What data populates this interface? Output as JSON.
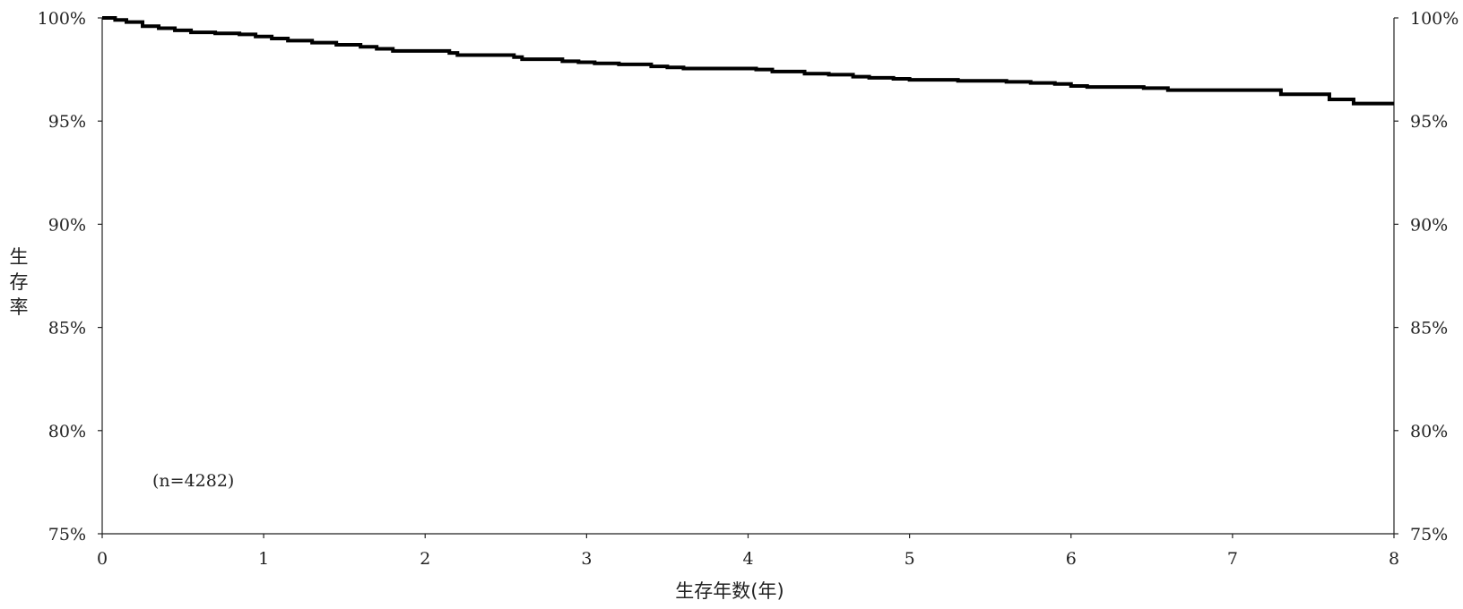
{
  "chart_data": {
    "type": "line",
    "title": "",
    "xlabel": "生存年数(年)",
    "ylabel": "生存率",
    "xlim": [
      0,
      8
    ],
    "ylim": [
      75,
      100
    ],
    "x_ticks": [
      0,
      1,
      2,
      3,
      4,
      5,
      6,
      7,
      8
    ],
    "y_ticks": [
      75,
      80,
      85,
      90,
      95,
      100
    ],
    "x_tick_labels": [
      "0",
      "1",
      "2",
      "3",
      "4",
      "5",
      "6",
      "7",
      "8"
    ],
    "y_tick_labels": [
      "75%",
      "80%",
      "85%",
      "90%",
      "95%",
      "100%"
    ],
    "y_tick_labels_right": [
      "75%",
      "80%",
      "85%",
      "90%",
      "95%",
      "100%"
    ],
    "grid": false,
    "legend": "none",
    "line_style": "step",
    "line_color": "#000000",
    "annotation": "(n=4282)",
    "series": [
      {
        "x": [
          0,
          0.08,
          0.15,
          0.25,
          0.35,
          0.45,
          0.55,
          0.7,
          0.85,
          0.95,
          1.05,
          1.15,
          1.3,
          1.45,
          1.6,
          1.7,
          1.8,
          2.0,
          2.15,
          2.2,
          2.35,
          2.55,
          2.6,
          2.75,
          2.85,
          2.95,
          3.05,
          3.2,
          3.4,
          3.5,
          3.6,
          3.75,
          3.95,
          4.05,
          4.15,
          4.35,
          4.5,
          4.65,
          4.75,
          4.9,
          5.0,
          5.15,
          5.3,
          5.45,
          5.6,
          5.75,
          5.9,
          6.0,
          6.1,
          6.3,
          6.45,
          6.6,
          6.75,
          6.9,
          7.05,
          7.2,
          7.3,
          7.45,
          7.6,
          7.75,
          8.0
        ],
        "y": [
          100,
          99.9,
          99.8,
          99.6,
          99.5,
          99.4,
          99.3,
          99.25,
          99.2,
          99.1,
          99.0,
          98.9,
          98.8,
          98.7,
          98.6,
          98.5,
          98.4,
          98.4,
          98.3,
          98.2,
          98.2,
          98.1,
          98.0,
          98.0,
          97.9,
          97.85,
          97.8,
          97.75,
          97.65,
          97.6,
          97.55,
          97.55,
          97.55,
          97.5,
          97.4,
          97.3,
          97.25,
          97.15,
          97.1,
          97.05,
          97.0,
          97.0,
          96.95,
          96.95,
          96.9,
          96.85,
          96.8,
          96.7,
          96.65,
          96.65,
          96.6,
          96.5,
          96.5,
          96.5,
          96.5,
          96.5,
          96.3,
          96.3,
          96.05,
          95.85,
          95.85
        ]
      }
    ]
  }
}
